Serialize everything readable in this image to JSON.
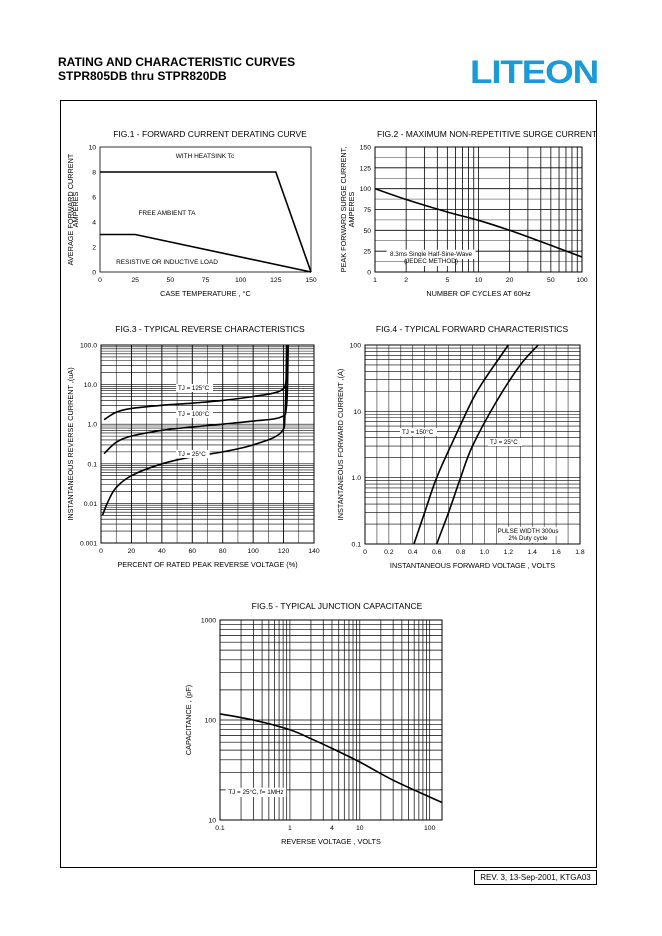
{
  "header": {
    "title": "RATING AND CHARACTERISTIC CURVES",
    "subtitle": "STPR805DB thru STPR820DB",
    "brand": "LITEON",
    "brand_color": "#1a9ad6"
  },
  "footer": {
    "revision": "REV. 3, 13-Sep-2001, KTGA03"
  },
  "chart_data": [
    {
      "id": "fig1",
      "type": "line",
      "title": "FIG.1 - FORWARD CURRENT DERATING CURVE",
      "xlabel": "CASE TEMPERATURE , °C",
      "ylabel": [
        "AVERAGE FORWARD CURRENT",
        "AMPERES"
      ],
      "xlim": [
        0,
        150
      ],
      "ylim": [
        0,
        10
      ],
      "xticks": [
        "0",
        "25",
        "50",
        "75",
        "100",
        "125",
        "150"
      ],
      "yticks": [
        "0",
        "2",
        "4",
        "6",
        "8",
        "10"
      ],
      "series": [
        {
          "name": "WITH HEATSINK Tc",
          "x": [
            0,
            125,
            150
          ],
          "y": [
            8,
            8,
            0
          ]
        },
        {
          "name": "FREE AMBIENT TA",
          "x": [
            0,
            25,
            150
          ],
          "y": [
            3,
            3,
            0
          ]
        }
      ],
      "annotations": [
        "WITH HEATSINK Tc",
        "FREE AMBIENT TA",
        "RESISTIVE OR  INDUCTIVE LOAD"
      ]
    },
    {
      "id": "fig2",
      "type": "line",
      "title": "FIG.2 - MAXIMUM NON-REPETITIVE SURGE CURRENT",
      "xlabel": "NUMBER OF CYCLES AT 60Hz",
      "ylabel": [
        "PEAK FORWARD SURGE CURRENT,",
        "AMPERES"
      ],
      "xscale": "log",
      "xlim": [
        1,
        100
      ],
      "ylim": [
        0,
        150
      ],
      "xticks": [
        "1",
        "2",
        "5",
        "10",
        "20",
        "50",
        "100"
      ],
      "yticks": [
        "0",
        "25",
        "50",
        "75",
        "100",
        "125",
        "150"
      ],
      "series": [
        {
          "x": [
            1,
            2,
            5,
            10,
            20,
            50,
            100
          ],
          "y": [
            100,
            87,
            72,
            62,
            50,
            32,
            18
          ]
        }
      ],
      "annotations": [
        "8.3ms Single Half-Sine-Wave",
        "(JEDEC METHOD)"
      ]
    },
    {
      "id": "fig3",
      "type": "line",
      "title": "FIG.3 - TYPICAL REVERSE CHARACTERISTICS",
      "xlabel": "PERCENT OF RATED PEAK REVERSE VOLTAGE (%)",
      "ylabel": [
        "INSTANTANEOUS REVERSE CURRENT ,(uA)"
      ],
      "yscale": "log",
      "xlim": [
        0,
        140
      ],
      "ylim": [
        0.001,
        100
      ],
      "xticks": [
        "0",
        "20",
        "40",
        "60",
        "80",
        "100",
        "120",
        "140"
      ],
      "yticks": [
        "0.001",
        "0.01",
        "0.1",
        "1.0",
        "10.0",
        "100.0"
      ],
      "series": [
        {
          "name": "TJ = 125°C",
          "x": [
            2,
            10,
            20,
            40,
            60,
            80,
            100,
            118,
            122,
            123
          ],
          "y": [
            1.3,
            2.0,
            2.5,
            3.0,
            3.4,
            4.0,
            5.0,
            7.0,
            15,
            100
          ]
        },
        {
          "name": "TJ = 100°C",
          "x": [
            2,
            10,
            20,
            40,
            60,
            80,
            100,
            118,
            122,
            123
          ],
          "y": [
            0.18,
            0.35,
            0.5,
            0.7,
            0.85,
            1.0,
            1.2,
            1.5,
            3,
            100
          ]
        },
        {
          "name": "TJ = 25°C",
          "x": [
            1,
            5,
            10,
            20,
            40,
            60,
            80,
            100,
            118,
            121,
            122
          ],
          "y": [
            0.005,
            0.012,
            0.025,
            0.05,
            0.1,
            0.15,
            0.2,
            0.3,
            0.6,
            2,
            100
          ]
        }
      ]
    },
    {
      "id": "fig4",
      "type": "line",
      "title": "FIG.4 - TYPICAL FORWARD CHARACTERISTICS",
      "xlabel": "INSTANTANEOUS FORWARD VOLTAGE , VOLTS",
      "ylabel": [
        "INSTANTANEOUS  FORWARD CURRENT ,(A)"
      ],
      "yscale": "log",
      "xlim": [
        0,
        1.8
      ],
      "ylim": [
        0.1,
        100
      ],
      "xticks": [
        "0",
        "0.2",
        "0.4",
        "0.6",
        "0.8",
        "1.0",
        "1.2",
        "1.4",
        "1.6",
        "1.8"
      ],
      "yticks": [
        "0.1",
        "1.0",
        "10",
        "100"
      ],
      "series": [
        {
          "name": "TJ = 150°C",
          "x": [
            0.41,
            0.5,
            0.6,
            0.75,
            0.9,
            1.0,
            1.2
          ],
          "y": [
            0.1,
            0.3,
            1.0,
            4.0,
            15,
            30,
            100
          ]
        },
        {
          "name": "TJ = 25°C",
          "x": [
            0.6,
            0.7,
            0.8,
            0.9,
            1.1,
            1.3,
            1.45
          ],
          "y": [
            0.1,
            0.3,
            1.0,
            3.0,
            14,
            50,
            100
          ]
        }
      ],
      "annotations": [
        "PULSE WIDTH 300us",
        "2% Duty cycle"
      ]
    },
    {
      "id": "fig5",
      "type": "line",
      "title": "FIG.5 - TYPICAL JUNCTION CAPACITANCE",
      "xlabel": "REVERSE VOLTAGE , VOLTS",
      "ylabel": [
        "CAPACITANCE , (pF)"
      ],
      "xscale": "log",
      "yscale": "log",
      "xlim": [
        0.1,
        150
      ],
      "ylim": [
        10,
        1000
      ],
      "xticks": [
        "0.1",
        "1",
        "4",
        "10",
        "100"
      ],
      "yticks": [
        "10",
        "100",
        "1000"
      ],
      "series": [
        {
          "x": [
            0.1,
            0.3,
            1,
            2,
            4,
            10,
            30,
            100,
            150
          ],
          "y": [
            115,
            100,
            80,
            65,
            52,
            38,
            25,
            17,
            15
          ]
        }
      ],
      "annotations": [
        "TJ = 25°C, f= 1MHz"
      ]
    }
  ]
}
